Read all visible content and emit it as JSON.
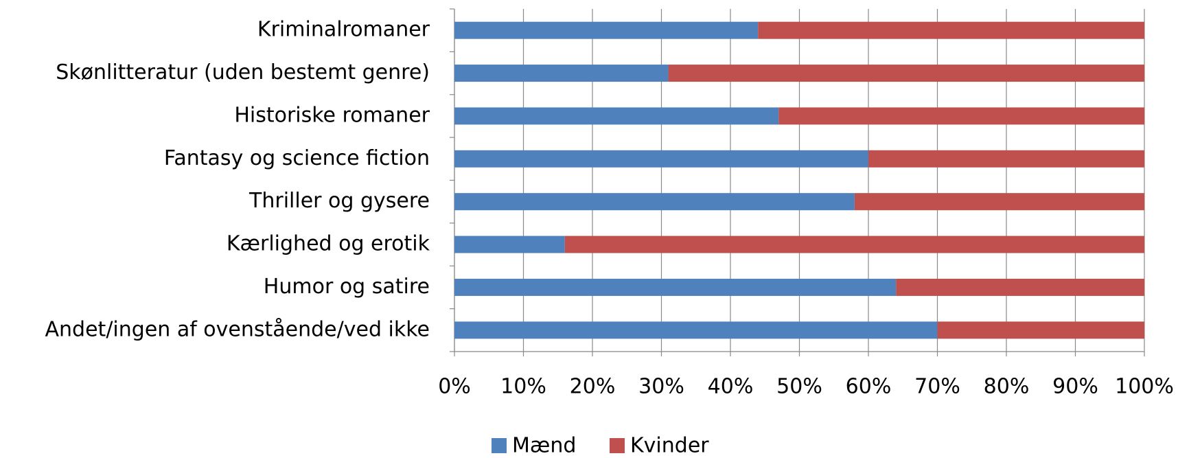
{
  "chart_data": {
    "type": "stacked_bar_horizontal",
    "categories": [
      "Kriminalromaner",
      "Skønlitteratur (uden bestemt genre)",
      "Historiske romaner",
      "Fantasy og science fiction",
      "Thriller og gysere",
      "Kærlighed og erotik",
      "Humor og satire",
      "Andet/ingen af ovenstående/ved ikke"
    ],
    "series": [
      {
        "name": "Mænd",
        "color": "#4f81bd",
        "values": [
          44,
          31,
          47,
          60,
          58,
          16,
          64,
          70
        ]
      },
      {
        "name": "Kvinder",
        "color": "#c0504d",
        "values": [
          56,
          69,
          53,
          40,
          42,
          84,
          36,
          30
        ]
      }
    ],
    "xlim": [
      0,
      100
    ],
    "xticks": [
      {
        "value": 0,
        "label": "0%"
      },
      {
        "value": 10,
        "label": "10%"
      },
      {
        "value": 20,
        "label": "20%"
      },
      {
        "value": 30,
        "label": "30%"
      },
      {
        "value": 40,
        "label": "40%"
      },
      {
        "value": 50,
        "label": "50%"
      },
      {
        "value": 60,
        "label": "60%"
      },
      {
        "value": 70,
        "label": "70%"
      },
      {
        "value": 80,
        "label": "80%"
      },
      {
        "value": 90,
        "label": "90%"
      },
      {
        "value": 100,
        "label": "100%"
      }
    ],
    "grid": true,
    "legend": "bottom"
  }
}
